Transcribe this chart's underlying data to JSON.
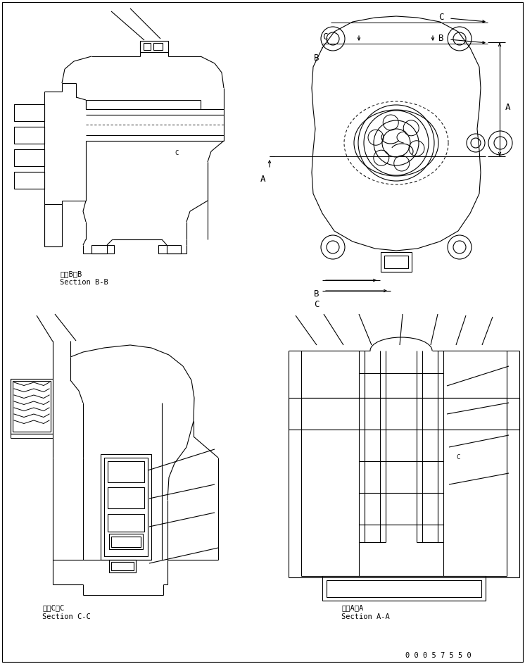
{
  "bg_color": "#ffffff",
  "line_color": "#000000",
  "fig_width": 7.46,
  "fig_height": 9.43,
  "part_number": "0 0 0 5 7 5 5 0",
  "labels": {
    "bb_japanese": "断面B－B",
    "bb_english": "Section B-B",
    "cc_japanese": "断面C－C",
    "cc_english": "Section C-C",
    "aa_japanese": "断面A－A",
    "aa_english": "Section A-A"
  }
}
